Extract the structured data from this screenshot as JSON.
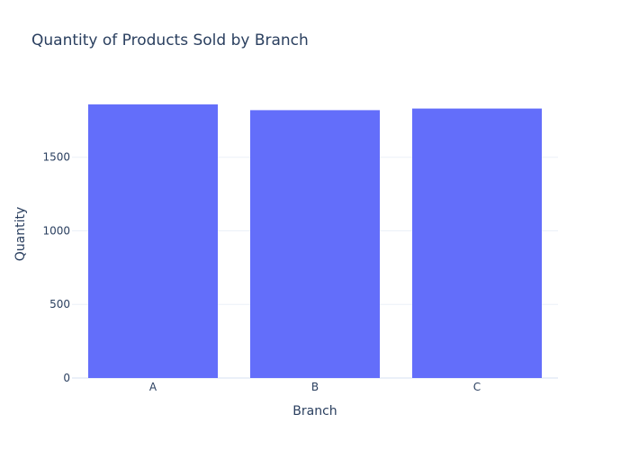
{
  "chart_data": {
    "type": "bar",
    "title": "Quantity of Products Sold by Branch",
    "xlabel": "Branch",
    "ylabel": "Quantity",
    "categories": [
      "A",
      "B",
      "C"
    ],
    "values": [
      1859,
      1820,
      1831
    ],
    "ylim": [
      0,
      1957
    ],
    "yticks": [
      0,
      500,
      1000,
      1500
    ],
    "ytick_labels": [
      "0",
      "500",
      "1000",
      "1500"
    ],
    "grid": true,
    "legend": "none",
    "bar_color": "#636efa"
  }
}
